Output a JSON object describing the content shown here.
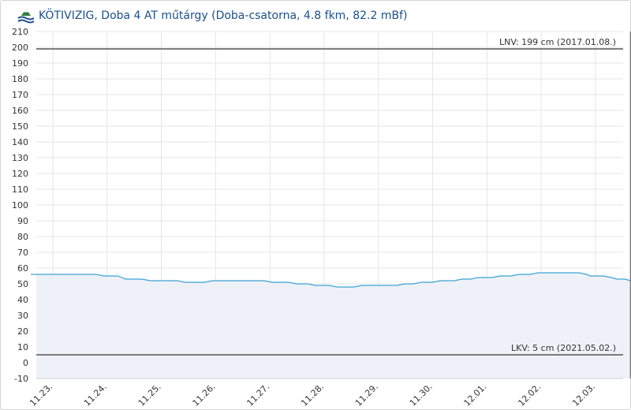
{
  "header": {
    "title": "KÖTIVIZIG, Doba 4 AT műtárgy (Doba-csatorna, 4.8 fkm, 82.2 mBf)",
    "logo_icon": "station-logo-icon"
  },
  "colors": {
    "line": "#3aa3d6",
    "area": "#eef1f7",
    "grid": "#e6e6e6",
    "reference": "#555555",
    "title": "#1c4f8a"
  },
  "chart_data": {
    "type": "area",
    "title": "",
    "xlabel": "",
    "ylabel": "",
    "ylim": [
      -10,
      210
    ],
    "yticks": [
      -10,
      0,
      10,
      20,
      30,
      40,
      50,
      60,
      70,
      80,
      90,
      100,
      110,
      120,
      130,
      140,
      150,
      160,
      170,
      180,
      190,
      200,
      210
    ],
    "xticks": [
      "11.23.",
      "11.24.",
      "11.25.",
      "11.26.",
      "11.27.",
      "11.28.",
      "11.29.",
      "11.30.",
      "12.01.",
      "12.02.",
      "12.03."
    ],
    "grid": true,
    "series": [
      {
        "values": [
          [
            0,
            56
          ],
          [
            1.2,
            56
          ],
          [
            1.35,
            55
          ],
          [
            1.6,
            55
          ],
          [
            1.75,
            53
          ],
          [
            2.05,
            53
          ],
          [
            2.2,
            52
          ],
          [
            2.7,
            52
          ],
          [
            2.85,
            51
          ],
          [
            3.2,
            51
          ],
          [
            3.35,
            52
          ],
          [
            4.3,
            52
          ],
          [
            4.45,
            51
          ],
          [
            4.75,
            51
          ],
          [
            4.9,
            50
          ],
          [
            5.1,
            50
          ],
          [
            5.25,
            49
          ],
          [
            5.5,
            49
          ],
          [
            5.65,
            48
          ],
          [
            5.95,
            48
          ],
          [
            6.1,
            49
          ],
          [
            6.75,
            49
          ],
          [
            6.9,
            50
          ],
          [
            7.05,
            50
          ],
          [
            7.2,
            51
          ],
          [
            7.4,
            51
          ],
          [
            7.55,
            52
          ],
          [
            7.8,
            52
          ],
          [
            7.95,
            53
          ],
          [
            8.1,
            53
          ],
          [
            8.25,
            54
          ],
          [
            8.5,
            54
          ],
          [
            8.65,
            55
          ],
          [
            8.85,
            55
          ],
          [
            9.0,
            56
          ],
          [
            9.2,
            56
          ],
          [
            9.35,
            57
          ],
          [
            10.1,
            57
          ],
          [
            10.25,
            56
          ],
          [
            10.3,
            55
          ],
          [
            10.55,
            55
          ],
          [
            10.7,
            54
          ],
          [
            10.8,
            53
          ],
          [
            10.95,
            53
          ],
          [
            11.05,
            52
          ]
        ]
      }
    ],
    "reference_lines": [
      {
        "value": 199,
        "label": "LNV: 199 cm (2017.01.08.)"
      },
      {
        "value": 5,
        "label": "LKV: 5 cm (2021.05.02.)"
      }
    ],
    "current_marker_x": 11.05
  }
}
